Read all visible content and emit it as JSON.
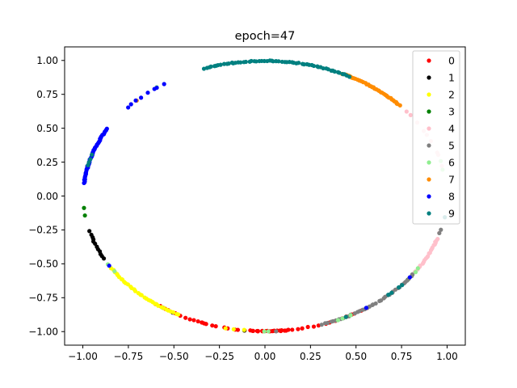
{
  "chart_data": {
    "type": "scatter",
    "title": "epoch=47",
    "xlabel": "",
    "ylabel": "",
    "xlim": [
      -1.1,
      1.1
    ],
    "ylim": [
      -1.1,
      1.1
    ],
    "xticks": [
      -1.0,
      -0.75,
      -0.5,
      -0.25,
      0.0,
      0.25,
      0.5,
      0.75,
      1.0
    ],
    "xtick_labels": [
      "−1.00",
      "−0.75",
      "−0.50",
      "−0.25",
      "0.00",
      "0.25",
      "0.50",
      "0.75",
      "1.00"
    ],
    "yticks": [
      -1.0,
      -0.75,
      -0.5,
      -0.25,
      0.0,
      0.25,
      0.5,
      0.75,
      1.0
    ],
    "ytick_labels": [
      "−1.00",
      "−0.75",
      "−0.50",
      "−0.25",
      "0.00",
      "0.25",
      "0.50",
      "0.75",
      "1.00"
    ],
    "grid": false,
    "legend_position": "top-right",
    "series": [
      {
        "name": "0",
        "color": "#ff0000",
        "arcs": [
          [
            -128,
            -55,
            40
          ],
          [
            -95,
            -82,
            14
          ],
          [
            -112,
            -108,
            3
          ]
        ]
      },
      {
        "name": "1",
        "color": "#000000",
        "arcs": [
          [
            -165,
            -152,
            12
          ],
          [
            -125,
            -118,
            2
          ],
          [
            -98,
            -95,
            1
          ]
        ]
      },
      {
        "name": "2",
        "color": "#ffff00",
        "arcs": [
          [
            -148,
            -118,
            34
          ],
          [
            -103,
            -96,
            3
          ]
        ]
      },
      {
        "name": "3",
        "color": "#008000",
        "arcs": [
          [
            -175,
            -170,
            2
          ],
          [
            -40,
            -35,
            2
          ]
        ]
      },
      {
        "name": "4",
        "color": "#ffc0cb",
        "arcs": [
          [
            -35,
            -18,
            22
          ],
          [
            12,
            45,
            10
          ],
          [
            98,
            102,
            1
          ],
          [
            -20,
            -15,
            2
          ]
        ]
      },
      {
        "name": "5",
        "color": "#808080",
        "arcs": [
          [
            -72,
            -35,
            40
          ],
          [
            -16,
            -14,
            2
          ],
          [
            -88,
            -85,
            1
          ]
        ]
      },
      {
        "name": "6",
        "color": "#90ee90",
        "arcs": [
          [
            -150,
            -145,
            2
          ],
          [
            -91,
            -88,
            2
          ],
          [
            -68,
            -60,
            3
          ],
          [
            -35,
            -30,
            2
          ],
          [
            125,
            128,
            1
          ],
          [
            10,
            16,
            2
          ]
        ]
      },
      {
        "name": "7",
        "color": "#ff8c00",
        "arcs": [
          [
            42,
            65,
            40
          ],
          [
            -65,
            -62,
            1
          ],
          [
            134,
            136,
            1
          ]
        ]
      },
      {
        "name": "8",
        "color": "#0000ff",
        "arcs": [
          [
            150,
            175,
            50
          ],
          [
            123,
            140,
            8
          ],
          [
            -57,
            -55,
            1
          ],
          [
            -38,
            -36,
            1
          ],
          [
            -150,
            -148,
            1
          ]
        ]
      },
      {
        "name": "9",
        "color": "#008080",
        "arcs": [
          [
            62,
            110,
            60
          ],
          [
            162,
            168,
            4
          ],
          [
            -48,
            -40,
            4
          ],
          [
            -65,
            -62,
            1
          ],
          [
            -10,
            -8,
            1
          ]
        ]
      }
    ]
  }
}
